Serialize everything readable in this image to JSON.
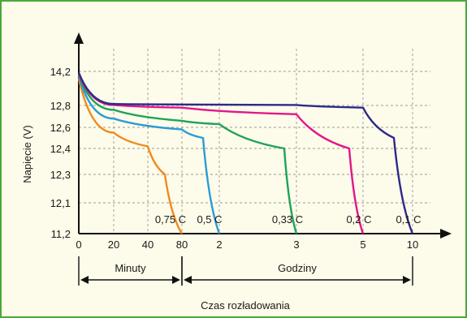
{
  "colors": {
    "frame_border": "#4aa83a",
    "background": "#fdfbe9",
    "grid": "#9a9a9a"
  },
  "chart_data": {
    "type": "line",
    "title": "",
    "xlabel": "Czas rozładowania",
    "ylabel": "Napięcie (V)",
    "y_ticks": [
      "11,2",
      "12,1",
      "12,3",
      "12,4",
      "12,6",
      "12,8",
      "14,2"
    ],
    "x_ticks": [
      "0",
      "20",
      "40",
      "80",
      "2",
      "3",
      "5",
      "10"
    ],
    "x_groups": [
      {
        "label": "Minuty",
        "from": "0",
        "to": "80"
      },
      {
        "label": "Godziny",
        "from": "80",
        "to": "10"
      }
    ],
    "grid": true,
    "y_scale": "non-linear (categorical tick spacing)",
    "x_scale": "piecewise: minutes 0–80, then hours 2, 3, 5, 10",
    "series": [
      {
        "name": "0,75 C",
        "color": "#f08a1c",
        "end_label": "0,75 C",
        "points": [
          [
            "0",
            13.9
          ],
          [
            "20",
            12.55
          ],
          [
            "40",
            12.42
          ],
          [
            "60",
            12.3
          ],
          [
            "80",
            11.2
          ]
        ]
      },
      {
        "name": "0,5 C",
        "color": "#2d9bd6",
        "end_label": "0,5 C",
        "points": [
          [
            "0",
            14.0
          ],
          [
            "20",
            12.68
          ],
          [
            "80",
            12.58
          ],
          [
            "1.5h",
            12.5
          ],
          [
            "2",
            11.2
          ]
        ]
      },
      {
        "name": "0,33 C",
        "color": "#1ea35a",
        "end_label": "0,33 C",
        "points": [
          [
            "0",
            14.05
          ],
          [
            "20",
            12.76
          ],
          [
            "80",
            12.66
          ],
          [
            "2",
            12.63
          ],
          [
            "2.8h",
            12.4
          ],
          [
            "3",
            11.2
          ]
        ]
      },
      {
        "name": "0,2 C",
        "color": "#e2168c",
        "end_label": "0,2 C",
        "points": [
          [
            "0",
            14.1
          ],
          [
            "20",
            12.82
          ],
          [
            "80",
            12.78
          ],
          [
            "3",
            12.72
          ],
          [
            "4.5h",
            12.4
          ],
          [
            "5",
            11.2
          ]
        ]
      },
      {
        "name": "0,1 C",
        "color": "#2a2a8a",
        "end_label": "0,1 C",
        "points": [
          [
            "0",
            14.15
          ],
          [
            "20",
            12.86
          ],
          [
            "80",
            12.84
          ],
          [
            "3",
            12.82
          ],
          [
            "5",
            12.78
          ],
          [
            "8h",
            12.5
          ],
          [
            "10",
            11.2
          ]
        ]
      }
    ]
  }
}
